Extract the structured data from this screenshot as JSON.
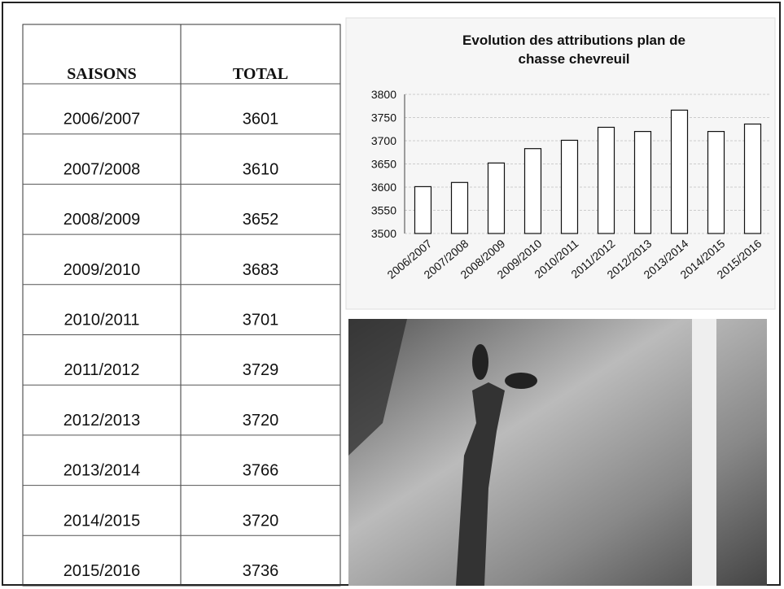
{
  "table": {
    "header": [
      "SAISONS",
      "TOTAL"
    ],
    "rows": [
      [
        "2006/2007",
        3601
      ],
      [
        "2007/2008",
        3610
      ],
      [
        "2008/2009",
        3652
      ],
      [
        "2009/2010",
        3683
      ],
      [
        "2010/2011",
        3701
      ],
      [
        "2011/2012",
        3729
      ],
      [
        "2012/2013",
        3720
      ],
      [
        "2013/2014",
        3766
      ],
      [
        "2014/2015",
        3720
      ],
      [
        "2015/2016",
        3736
      ]
    ]
  },
  "chart_data": {
    "type": "bar",
    "title": [
      "Evolution des attributions plan de",
      "chasse chevreuil"
    ],
    "categories": [
      "2006/2007",
      "2007/2008",
      "2008/2009",
      "2009/2010",
      "2010/2011",
      "2011/2012",
      "2012/2013",
      "2013/2014",
      "2014/2015",
      "2015/2016"
    ],
    "values": [
      3601,
      3610,
      3652,
      3683,
      3701,
      3729,
      3720,
      3766,
      3720,
      3736
    ],
    "color": "#ffffff",
    "ylim": [
      3500,
      3800
    ],
    "yticks": [
      3500,
      3550,
      3600,
      3650,
      3700,
      3750,
      3800
    ],
    "grid": true
  }
}
